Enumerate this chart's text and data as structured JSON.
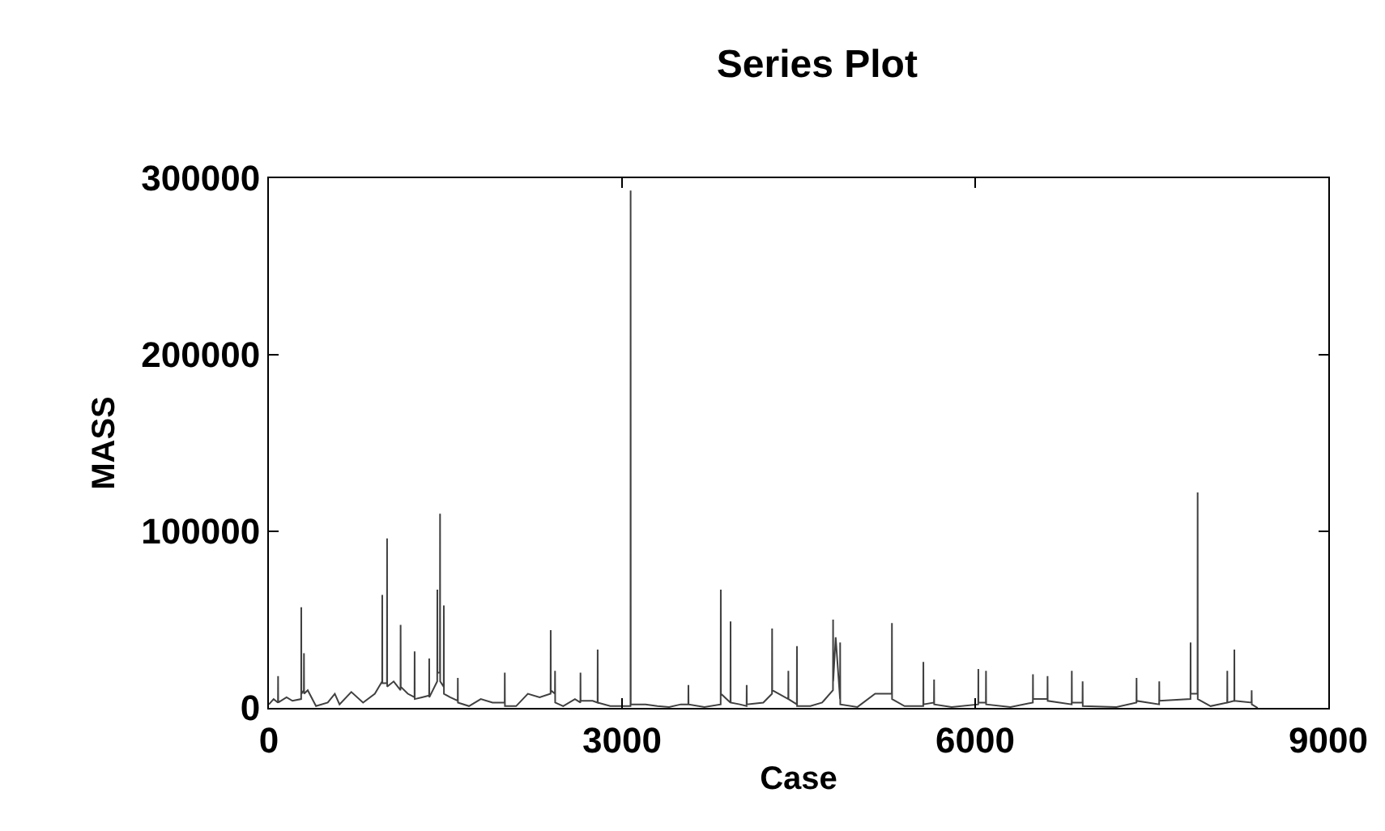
{
  "chart_data": {
    "type": "line",
    "title": "Series Plot",
    "xlabel": "Case",
    "ylabel": "MASS",
    "xlim": [
      0,
      9000
    ],
    "xticks": [
      0,
      3000,
      6000,
      9000
    ],
    "ylim": [
      0,
      300000
    ],
    "yticks": [
      0,
      100000,
      200000,
      300000
    ],
    "marker": "none",
    "line_style": "solid",
    "series": [
      {
        "color": "#404040",
        "x": [
          0,
          40,
          77,
          78,
          79,
          150,
          200,
          274,
          275,
          276,
          297,
          298,
          299,
          330,
          400,
          500,
          560,
          600,
          700,
          800,
          900,
          962,
          963,
          964,
          1003,
          1004,
          1005,
          1060,
          1118,
          1119,
          1120,
          1180,
          1237,
          1238,
          1239,
          1300,
          1361,
          1362,
          1363,
          1430,
          1431,
          1432,
          1453,
          1454,
          1455,
          1485,
          1486,
          1487,
          1540,
          1604,
          1605,
          1606,
          1700,
          1800,
          1900,
          2003,
          2004,
          2005,
          2100,
          2200,
          2300,
          2393,
          2394,
          2395,
          2430,
          2431,
          2432,
          2500,
          2600,
          2646,
          2647,
          2648,
          2750,
          2792,
          2793,
          2794,
          2900,
          3000,
          3072,
          3073,
          3074,
          3200,
          3300,
          3400,
          3500,
          3563,
          3564,
          3565,
          3700,
          3838,
          3839,
          3840,
          3921,
          3922,
          3923,
          4000,
          4058,
          4059,
          4060,
          4200,
          4274,
          4275,
          4276,
          4412,
          4413,
          4414,
          4485,
          4486,
          4487,
          4600,
          4700,
          4792,
          4793,
          4794,
          4815,
          4852,
          4853,
          4854,
          5000,
          5150,
          5292,
          5293,
          5294,
          5400,
          5559,
          5560,
          5561,
          5650,
          5651,
          5652,
          5800,
          6026,
          6027,
          6028,
          6091,
          6092,
          6093,
          6300,
          6490,
          6491,
          6492,
          6614,
          6615,
          6616,
          6820,
          6821,
          6822,
          6912,
          6913,
          6914,
          7200,
          7370,
          7371,
          7372,
          7563,
          7564,
          7565,
          7829,
          7830,
          7831,
          7889,
          7890,
          7891,
          8000,
          8141,
          8142,
          8143,
          8201,
          8202,
          8203,
          8348,
          8349,
          8350,
          8400
        ],
        "values": [
          2000,
          5000,
          3000,
          18000,
          3000,
          6000,
          4000,
          5000,
          57000,
          8000,
          10000,
          31000,
          8000,
          10000,
          1000,
          3000,
          8000,
          2000,
          9000,
          3000,
          8000,
          15000,
          64000,
          14000,
          14000,
          96000,
          12000,
          15000,
          10000,
          47000,
          12000,
          8000,
          6000,
          32000,
          5000,
          6000,
          7000,
          28000,
          6000,
          15000,
          67000,
          20000,
          20000,
          110000,
          15000,
          12000,
          58000,
          8000,
          6000,
          4000,
          17000,
          3000,
          1000,
          5000,
          3000,
          3000,
          20000,
          1000,
          1000,
          8000,
          6000,
          8000,
          44000,
          10000,
          8000,
          21000,
          3000,
          1000,
          5000,
          3000,
          20000,
          4000,
          4000,
          3000,
          33000,
          3000,
          1000,
          1000,
          1000,
          293000,
          2000,
          2000,
          1000,
          500,
          2000,
          2000,
          13000,
          2000,
          500,
          2000,
          67000,
          8000,
          3000,
          49000,
          3000,
          2000,
          1000,
          13000,
          2000,
          3000,
          8000,
          45000,
          10000,
          5000,
          21000,
          5000,
          2000,
          35000,
          1000,
          1000,
          3000,
          10000,
          50000,
          15000,
          40000,
          5000,
          37000,
          2000,
          500,
          8000,
          8000,
          48000,
          5000,
          1000,
          1000,
          26000,
          2000,
          3000,
          16000,
          2000,
          500,
          2000,
          22000,
          3000,
          3000,
          21000,
          2000,
          500,
          3000,
          19000,
          5000,
          5000,
          18000,
          4000,
          2000,
          21000,
          3000,
          3000,
          15000,
          1000,
          500,
          3000,
          17000,
          4000,
          2000,
          15000,
          4000,
          5000,
          37000,
          8000,
          8000,
          122000,
          5000,
          1000,
          3000,
          21000,
          3000,
          4000,
          33000,
          4000,
          3000,
          10000,
          2000,
          0
        ]
      }
    ]
  }
}
